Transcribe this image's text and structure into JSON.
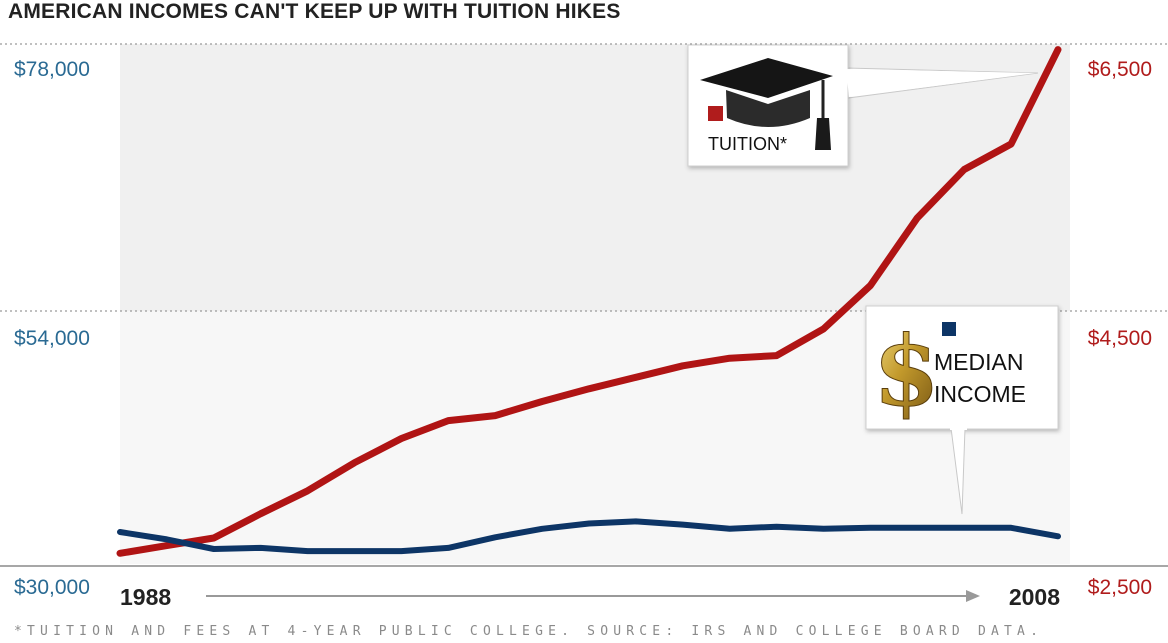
{
  "title": "AMERICAN INCOMES CAN'T KEEP UP WITH TUITION HIKES",
  "footnote": "*TUITION AND FEES AT 4-YEAR PUBLIC COLLEGE. SOURCE: IRS AND COLLEGE BOARD DATA.",
  "colors": {
    "tuition": "#b01414",
    "income": "#0d3566",
    "left_axis": "#2a6a93",
    "right_axis": "#b01c1c",
    "band": "#f0f0f0"
  },
  "chart_data": {
    "type": "line",
    "x": [
      1988,
      1989,
      1990,
      1991,
      1992,
      1993,
      1994,
      1995,
      1996,
      1997,
      1998,
      1999,
      2000,
      2001,
      2002,
      2003,
      2004,
      2005,
      2006,
      2007,
      2008
    ],
    "x_start_label": "1988",
    "x_end_label": "2008",
    "y_left": {
      "ticks": [
        30000,
        54000,
        78000
      ],
      "tick_labels": [
        "$30,000",
        "$54,000",
        "$78,000"
      ],
      "range": [
        30000,
        78000
      ]
    },
    "y_right": {
      "ticks": [
        2500,
        4500,
        6500
      ],
      "tick_labels": [
        "$2,500",
        "$4,500",
        "$6,500"
      ],
      "range": [
        2500,
        6500
      ]
    },
    "series": [
      {
        "name": "TUITION*",
        "axis": "right",
        "icon": "graduation-cap-icon",
        "values": [
          2600,
          2660,
          2720,
          2910,
          3090,
          3310,
          3500,
          3640,
          3680,
          3790,
          3890,
          3980,
          4070,
          4130,
          4150,
          4360,
          4700,
          5230,
          5610,
          5810,
          6550
        ]
      },
      {
        "name": "MEDIAN INCOME",
        "name_lines": [
          "MEDIAN",
          "INCOME"
        ],
        "axis": "left",
        "icon": "dollar-sign-icon",
        "values": [
          33200,
          32500,
          31600,
          31700,
          31400,
          31400,
          31400,
          31700,
          32700,
          33500,
          34000,
          34200,
          33900,
          33500,
          33700,
          33500,
          33600,
          33600,
          33600,
          33600,
          32800
        ]
      }
    ],
    "grid": "dotted horizontal lines at the top and middle ticks"
  }
}
